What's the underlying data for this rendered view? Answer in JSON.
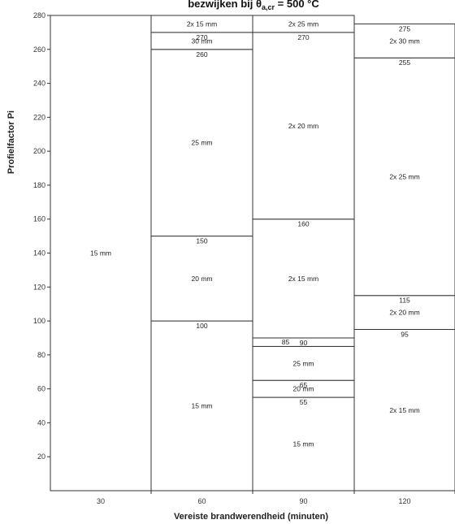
{
  "chart_data": {
    "type": "bar",
    "title_prefix": "bezwijken bij θ",
    "title_subscript": "a,cr",
    "title_suffix": " = 500 °C",
    "xlabel": "Vereiste brandwerendheid (minuten)",
    "ylabel": "Profielfactor Pi",
    "ylim": [
      0,
      280
    ],
    "yticks": [
      20,
      40,
      60,
      80,
      100,
      120,
      140,
      160,
      180,
      200,
      220,
      240,
      260,
      280
    ],
    "categories": [
      "30",
      "60",
      "90",
      "120"
    ],
    "columns": [
      {
        "category": "30",
        "segments": [
          {
            "from": 0,
            "to": 280,
            "label": "15 mm"
          }
        ],
        "boundary_labels": []
      },
      {
        "category": "60",
        "segments": [
          {
            "from": 0,
            "to": 100,
            "label": "15 mm"
          },
          {
            "from": 100,
            "to": 150,
            "label": "20 mm"
          },
          {
            "from": 150,
            "to": 260,
            "label": "25 mm"
          },
          {
            "from": 260,
            "to": 270,
            "label": "30 mm"
          },
          {
            "from": 270,
            "to": 280,
            "label": "2x 15 mm"
          }
        ],
        "boundary_labels": [
          {
            "value": 100,
            "text": "100"
          },
          {
            "value": 150,
            "text": "150"
          },
          {
            "value": 260,
            "text": "260"
          },
          {
            "value": 270,
            "text": "270"
          }
        ]
      },
      {
        "category": "90",
        "segments": [
          {
            "from": 0,
            "to": 55,
            "label": "15 mm"
          },
          {
            "from": 55,
            "to": 65,
            "label": "20 mm"
          },
          {
            "from": 65,
            "to": 85,
            "label": "25 mm"
          },
          {
            "from": 85,
            "to": 90,
            "label": ""
          },
          {
            "from": 90,
            "to": 160,
            "label": "2x 15 mm"
          },
          {
            "from": 160,
            "to": 270,
            "label": "2x 20 mm"
          },
          {
            "from": 270,
            "to": 280,
            "label": "2x 25 mm"
          }
        ],
        "boundary_labels": [
          {
            "value": 55,
            "text": "55"
          },
          {
            "value": 65,
            "text": "65"
          },
          {
            "value": 85,
            "text": "85"
          },
          {
            "value": 90,
            "text": "90"
          },
          {
            "value": 160,
            "text": "160"
          },
          {
            "value": 270,
            "text": "270"
          }
        ]
      },
      {
        "category": "120",
        "segments": [
          {
            "from": 0,
            "to": 95,
            "label": "2x 15 mm"
          },
          {
            "from": 95,
            "to": 115,
            "label": "2x 20 mm"
          },
          {
            "from": 115,
            "to": 255,
            "label": "2x 25 mm"
          },
          {
            "from": 255,
            "to": 275,
            "label": "2x 30 mm"
          }
        ],
        "boundary_labels": [
          {
            "value": 95,
            "text": "95"
          },
          {
            "value": 115,
            "text": "115"
          },
          {
            "value": 255,
            "text": "255"
          },
          {
            "value": 275,
            "text": "275"
          }
        ]
      }
    ],
    "grid": false,
    "legend": "none"
  }
}
